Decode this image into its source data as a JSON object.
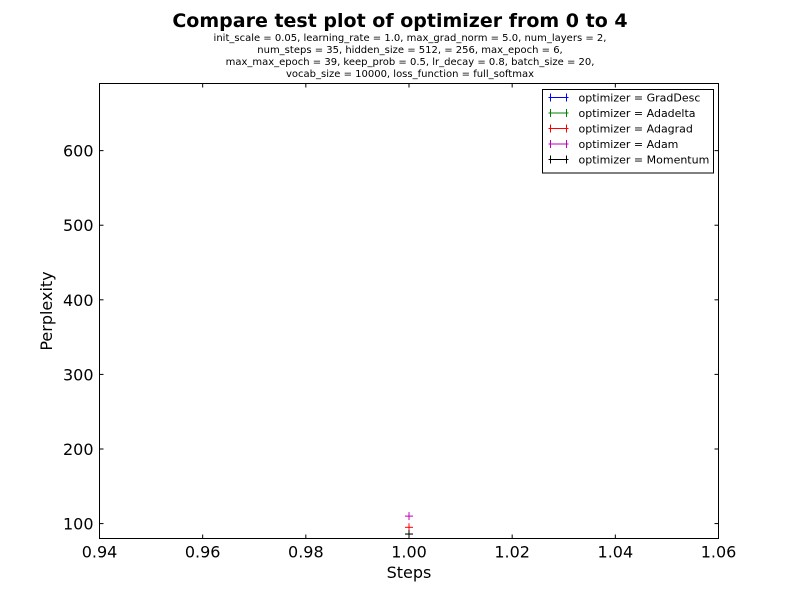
{
  "chart_data": {
    "type": "scatter",
    "title": "Compare test plot of optimizer from 0 to 4",
    "subtitle_lines": [
      "init_scale = 0.05, learning_rate = 1.0, max_grad_norm = 5.0, num_layers = 2,",
      "num_steps = 35, hidden_size = 512,   = 256, max_epoch = 6,",
      "max_max_epoch = 39, keep_prob = 0.5, lr_decay = 0.8, batch_size = 20,",
      "vocab_size = 10000, loss_function = full_softmax"
    ],
    "xlabel": "Steps",
    "ylabel": "Perplexity",
    "xlim": [
      0.94,
      1.06
    ],
    "ylim": [
      80,
      690
    ],
    "x_ticks": [
      0.94,
      0.96,
      0.98,
      1.0,
      1.02,
      1.04,
      1.06
    ],
    "y_ticks": [
      100,
      200,
      300,
      400,
      500,
      600
    ],
    "grid": false,
    "legend_position": "top-right",
    "marker": "+",
    "series": [
      {
        "name": "optimizer = GradDesc",
        "color": "#0000ff",
        "x": [
          1.0
        ],
        "y": [
          86
        ]
      },
      {
        "name": "optimizer = Adadelta",
        "color": "#008000",
        "x": [
          1.0
        ],
        "y": [
          86
        ]
      },
      {
        "name": "optimizer = Adagrad",
        "color": "#ff0000",
        "x": [
          1.0
        ],
        "y": [
          95
        ]
      },
      {
        "name": "optimizer = Adam",
        "color": "#bf00bf",
        "x": [
          1.0
        ],
        "y": [
          110
        ]
      },
      {
        "name": "optimizer = Momentum",
        "color": "#000000",
        "x": [
          1.0
        ],
        "y": [
          86
        ]
      }
    ]
  }
}
